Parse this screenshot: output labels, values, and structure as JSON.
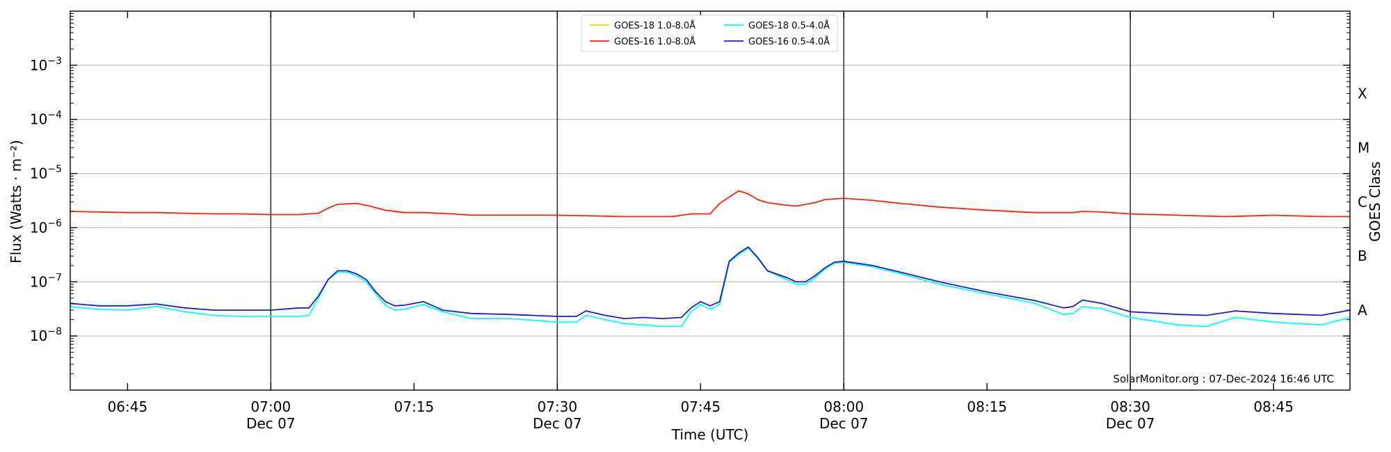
{
  "chart_data": {
    "type": "line",
    "xlabel": "Time (UTC)",
    "ylabel": "Flux (Watts · m⁻²)",
    "right_label": "GOES Class",
    "y_scale": "log",
    "ylim": [
      1e-09,
      0.01
    ],
    "xlim": [
      "06:39",
      "08:53"
    ],
    "grid": "horizontal at each power of ten",
    "legend_position": "top-center",
    "credit": "SolarMonitor.org : 07-Dec-2024 16:46 UTC",
    "y_ticks": [
      {
        "value": 1e-08,
        "base": "10",
        "exp": "−8"
      },
      {
        "value": 1e-07,
        "base": "10",
        "exp": "−7"
      },
      {
        "value": 1e-06,
        "base": "10",
        "exp": "−6"
      },
      {
        "value": 1e-05,
        "base": "10",
        "exp": "−5"
      },
      {
        "value": 0.0001,
        "base": "10",
        "exp": "−4"
      },
      {
        "value": 0.001,
        "base": "10",
        "exp": "−3"
      }
    ],
    "x_ticks": [
      {
        "time": "06:45",
        "label": "06:45",
        "sub": ""
      },
      {
        "time": "07:00",
        "label": "07:00",
        "sub": "Dec 07"
      },
      {
        "time": "07:15",
        "label": "07:15",
        "sub": ""
      },
      {
        "time": "07:30",
        "label": "07:30",
        "sub": "Dec 07"
      },
      {
        "time": "07:45",
        "label": "07:45",
        "sub": ""
      },
      {
        "time": "08:00",
        "label": "08:00",
        "sub": "Dec 07"
      },
      {
        "time": "08:15",
        "label": "08:15",
        "sub": ""
      },
      {
        "time": "08:30",
        "label": "08:30",
        "sub": "Dec 07"
      },
      {
        "time": "08:45",
        "label": "08:45",
        "sub": ""
      }
    ],
    "vertical_lines": [
      "07:00",
      "07:30",
      "08:00",
      "08:30"
    ],
    "goes_classes": [
      {
        "label": "A",
        "value": 3e-08
      },
      {
        "label": "B",
        "value": 3e-07
      },
      {
        "label": "C",
        "value": 3e-06
      },
      {
        "label": "M",
        "value": 3e-05
      },
      {
        "label": "X",
        "value": 0.0003
      }
    ],
    "series": [
      {
        "name": "GOES-18 1.0-8.0Å",
        "color": "#ffd700",
        "x": [],
        "values": []
      },
      {
        "name": "GOES-16 1.0-8.0Å",
        "color": "#ff2200",
        "x": [
          "06:39",
          "06:42",
          "06:45",
          "06:48",
          "06:51",
          "06:54",
          "06:57",
          "07:00",
          "07:03",
          "07:05",
          "07:06",
          "07:07",
          "07:09",
          "07:10",
          "07:12",
          "07:14",
          "07:16",
          "07:19",
          "07:21",
          "07:25",
          "07:30",
          "07:34",
          "07:37",
          "07:40",
          "07:42",
          "07:44",
          "07:46",
          "07:47",
          "07:49",
          "07:50",
          "07:51",
          "07:52",
          "07:54",
          "07:55",
          "07:57",
          "07:58",
          "08:00",
          "08:03",
          "08:06",
          "08:10",
          "08:15",
          "08:20",
          "08:24",
          "08:25",
          "08:27",
          "08:30",
          "08:35",
          "08:40",
          "08:45",
          "08:50",
          "08:53"
        ],
        "values": [
          2e-06,
          1.95e-06,
          1.9e-06,
          1.9e-06,
          1.85e-06,
          1.8e-06,
          1.8e-06,
          1.75e-06,
          1.75e-06,
          1.85e-06,
          2.3e-06,
          2.7e-06,
          2.8e-06,
          2.6e-06,
          2.1e-06,
          1.9e-06,
          1.9e-06,
          1.8e-06,
          1.7e-06,
          1.7e-06,
          1.7e-06,
          1.65e-06,
          1.6e-06,
          1.6e-06,
          1.6e-06,
          1.8e-06,
          1.8e-06,
          2.8e-06,
          4.8e-06,
          4.2e-06,
          3.3e-06,
          2.9e-06,
          2.6e-06,
          2.5e-06,
          2.9e-06,
          3.3e-06,
          3.5e-06,
          3.2e-06,
          2.8e-06,
          2.4e-06,
          2.1e-06,
          1.9e-06,
          1.9e-06,
          2e-06,
          1.95e-06,
          1.8e-06,
          1.7e-06,
          1.6e-06,
          1.7e-06,
          1.6e-06,
          1.6e-06
        ]
      },
      {
        "name": "GOES-18 0.5-4.0Å",
        "color": "#00ffff",
        "x": [
          "06:39",
          "06:42",
          "06:45",
          "06:48",
          "06:51",
          "06:54",
          "06:57",
          "07:00",
          "07:03",
          "07:04",
          "07:05",
          "07:06",
          "07:07",
          "07:08",
          "07:09",
          "07:10",
          "07:11",
          "07:12",
          "07:13",
          "07:14",
          "07:16",
          "07:18",
          "07:21",
          "07:25",
          "07:30",
          "07:32",
          "07:33",
          "07:35",
          "07:37",
          "07:39",
          "07:41",
          "07:43",
          "07:44",
          "07:45",
          "07:46",
          "07:47",
          "07:48",
          "07:49",
          "07:50",
          "07:51",
          "07:52",
          "07:54",
          "07:55",
          "07:56",
          "07:57",
          "07:58",
          "07:59",
          "08:00",
          "08:03",
          "08:06",
          "08:10",
          "08:15",
          "08:20",
          "08:23",
          "08:24",
          "08:25",
          "08:27",
          "08:30",
          "08:35",
          "08:38",
          "08:41",
          "08:45",
          "08:50",
          "08:53"
        ],
        "values": [
          3.5e-08,
          3.1e-08,
          3e-08,
          3.5e-08,
          2.8e-08,
          2.4e-08,
          2.3e-08,
          2.3e-08,
          2.3e-08,
          2.4e-08,
          5e-08,
          1.1e-07,
          1.5e-07,
          1.5e-07,
          1.3e-07,
          1e-07,
          6e-08,
          3.7e-08,
          3e-08,
          3.1e-08,
          3.8e-08,
          2.8e-08,
          2.1e-08,
          2.1e-08,
          1.8e-08,
          1.8e-08,
          2.4e-08,
          2e-08,
          1.7e-08,
          1.6e-08,
          1.5e-08,
          1.5e-08,
          2.8e-08,
          3.8e-08,
          3.1e-08,
          3.8e-08,
          2.3e-07,
          3.2e-07,
          4.2e-07,
          2.7e-07,
          1.6e-07,
          1.1e-07,
          9e-08,
          9e-08,
          1.2e-07,
          1.7e-07,
          2.2e-07,
          2.3e-07,
          1.9e-07,
          1.4e-07,
          9e-08,
          6e-08,
          4e-08,
          2.5e-08,
          2.6e-08,
          3.5e-08,
          3.2e-08,
          2.2e-08,
          1.6e-08,
          1.5e-08,
          2.2e-08,
          1.8e-08,
          1.6e-08,
          2.2e-08
        ]
      },
      {
        "name": "GOES-16 0.5-4.0Å",
        "color": "#1c1ccc",
        "x": [
          "06:39",
          "06:42",
          "06:45",
          "06:48",
          "06:51",
          "06:54",
          "06:57",
          "07:00",
          "07:03",
          "07:04",
          "07:05",
          "07:06",
          "07:07",
          "07:08",
          "07:09",
          "07:10",
          "07:11",
          "07:12",
          "07:13",
          "07:14",
          "07:16",
          "07:18",
          "07:21",
          "07:25",
          "07:30",
          "07:32",
          "07:33",
          "07:35",
          "07:37",
          "07:39",
          "07:41",
          "07:43",
          "07:44",
          "07:45",
          "07:46",
          "07:47",
          "07:48",
          "07:49",
          "07:50",
          "07:51",
          "07:52",
          "07:54",
          "07:55",
          "07:56",
          "07:57",
          "07:58",
          "07:59",
          "08:00",
          "08:03",
          "08:06",
          "08:10",
          "08:15",
          "08:20",
          "08:23",
          "08:24",
          "08:25",
          "08:27",
          "08:30",
          "08:35",
          "08:38",
          "08:41",
          "08:45",
          "08:50",
          "08:53"
        ],
        "values": [
          4e-08,
          3.6e-08,
          3.6e-08,
          3.9e-08,
          3.3e-08,
          3e-08,
          3e-08,
          3e-08,
          3.3e-08,
          3.3e-08,
          5.5e-08,
          1.1e-07,
          1.6e-07,
          1.6e-07,
          1.4e-07,
          1.1e-07,
          6.5e-08,
          4.3e-08,
          3.6e-08,
          3.7e-08,
          4.3e-08,
          3e-08,
          2.6e-08,
          2.5e-08,
          2.3e-08,
          2.3e-08,
          2.9e-08,
          2.4e-08,
          2.1e-08,
          2.2e-08,
          2.1e-08,
          2.2e-08,
          3.3e-08,
          4.3e-08,
          3.6e-08,
          4.3e-08,
          2.4e-07,
          3.4e-07,
          4.4e-07,
          2.8e-07,
          1.6e-07,
          1.2e-07,
          1e-07,
          1e-07,
          1.3e-07,
          1.8e-07,
          2.3e-07,
          2.4e-07,
          2e-07,
          1.5e-07,
          1e-07,
          6.5e-08,
          4.5e-08,
          3.3e-08,
          3.5e-08,
          4.6e-08,
          4e-08,
          2.8e-08,
          2.5e-08,
          2.4e-08,
          2.9e-08,
          2.6e-08,
          2.4e-08,
          3e-08
        ]
      }
    ]
  }
}
